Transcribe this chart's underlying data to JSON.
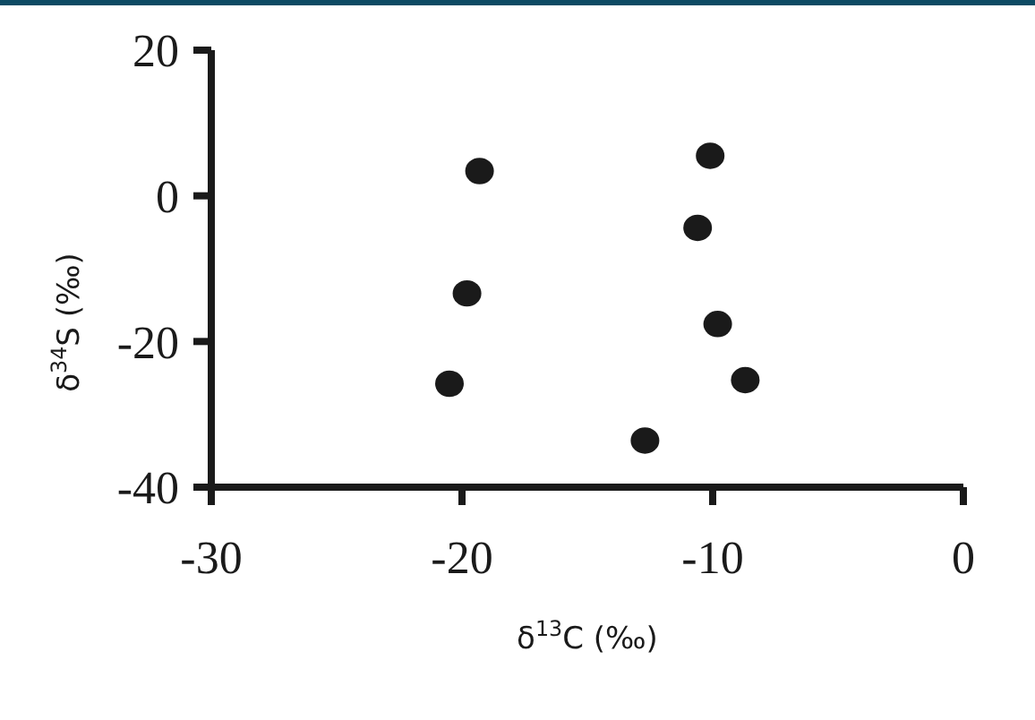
{
  "chart_data": {
    "type": "scatter",
    "xlabel": "δ$^{13}$C (‰)",
    "ylabel": "δ$^{34}$S (‰)",
    "xlim": [
      -30,
      0
    ],
    "xticks": [
      -30,
      -20,
      -10,
      0
    ],
    "ylim": [
      -40,
      20
    ],
    "yticks": [
      -40,
      -20,
      0,
      20
    ],
    "grid": false,
    "marker": "circle",
    "series": [
      {
        "color": "#1a1a1a",
        "x": [
          -19.3,
          -19.8,
          -20.5,
          -10.1,
          -10.6,
          -9.8,
          -8.7,
          -12.7
        ],
        "values": [
          3.4,
          -13.4,
          -25.8,
          5.5,
          -4.4,
          -17.6,
          -25.3,
          -33.6
        ]
      }
    ]
  }
}
